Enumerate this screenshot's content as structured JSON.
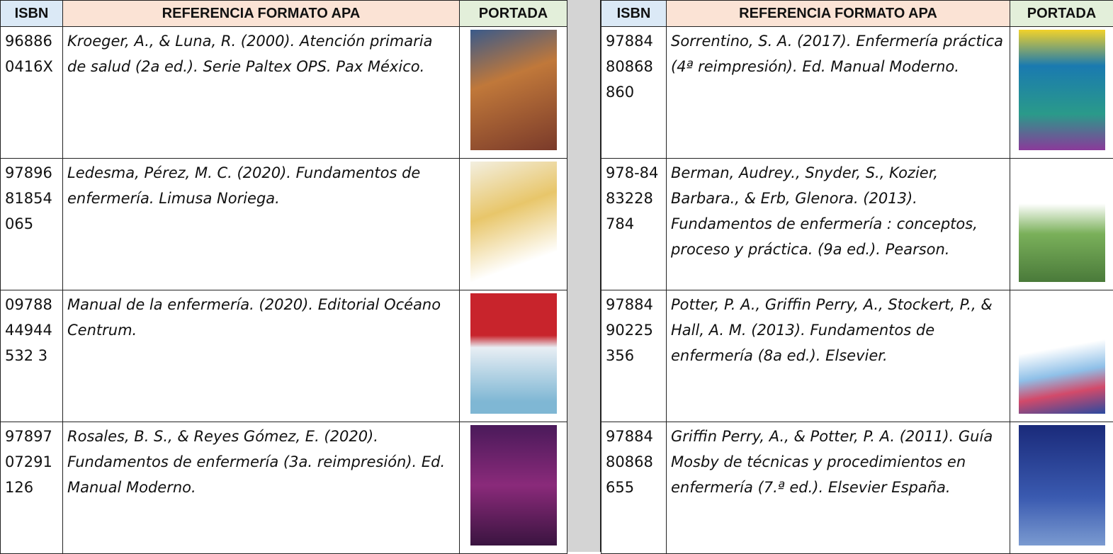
{
  "tables": [
    {
      "header": [
        "ISBN",
        "REFERENCIA FORMATO APA",
        "PORTADA"
      ],
      "rows": [
        [
          "968860416X",
          "Kroeger, A., & Luna, R. (2000). Atención primaria de salud (2a ed.). Serie Paltex OPS. Pax México."
        ],
        [
          "9789681854065",
          "Ledesma, Pérez, M. C. (2020). Fundamentos de enfermería. Limusa Noriega."
        ],
        [
          "0978844944532 3",
          "Manual de la enfermería. (2020). Editorial Océano Centrum."
        ],
        [
          "9789707291126",
          "Rosales, B. S., & Reyes Gómez, E. (2020). Fundamentos de enfermería (3a. reimpresión). Ed. Manual Moderno."
        ]
      ]
    },
    {
      "header": [
        "ISBN",
        "REFERENCIA FORMATO APA",
        "PORTADA"
      ],
      "rows": [
        [
          "9788480868860",
          "Sorrentino, S. A. (2017). Enfermería práctica (4ª reimpresión). Ed. Manual Moderno."
        ],
        [
          "978-8483228784",
          "Berman, Audrey., Snyder, S., Kozier, Barbara., & Erb, Glenora. (2013). Fundamentos de enfermería : conceptos, proceso y práctica. (9a  ed.). Pearson."
        ],
        [
          "9788490225356",
          "Potter, P. A., Griffin Perry, A., Stockert, P., & Hall, A. M. (2013). Fundamentos de enfermería (8a ed.). Elsevier."
        ],
        [
          "9788480868655",
          "Griffin Perry, A., & Potter, P. A. (2011). Guía Mosby de técnicas y procedimientos en enfermería (7.ª ed.). Elsevier España."
        ]
      ]
    }
  ]
}
